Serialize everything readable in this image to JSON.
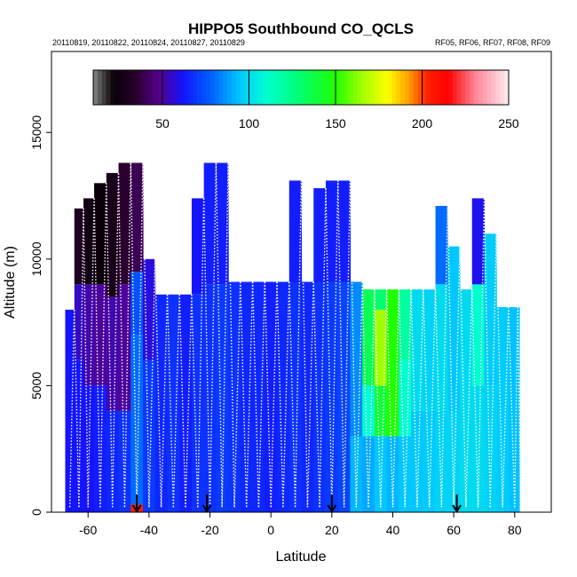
{
  "chart_data": {
    "type": "heatmap",
    "title": "HIPPO5 Southbound CO_QCLS",
    "subtitle_left": "20110819, 20110822, 20110824, 20110827, 20110829",
    "subtitle_right": "RF05, RF06, RF07, RF08, RF09",
    "xlabel": "Latitude",
    "ylabel": "Altitude (m)",
    "xlim": [
      -72,
      92
    ],
    "ylim": [
      0,
      18200
    ],
    "x_ticks": [
      -60,
      -40,
      -20,
      0,
      20,
      40,
      60,
      80
    ],
    "x_tick_labels": [
      "-60",
      "-40",
      "-20",
      "0",
      "20",
      "40",
      "60",
      "80"
    ],
    "y_ticks": [
      0,
      5000,
      10000,
      15000
    ],
    "y_tick_labels": [
      "0",
      "5000",
      "10000",
      "15000"
    ],
    "colorbar": {
      "range": [
        10,
        250
      ],
      "ticks": [
        50,
        100,
        150,
        200,
        250
      ],
      "tick_labels": [
        "50",
        "100",
        "150",
        "200",
        "250"
      ],
      "stops": [
        {
          "v": 10,
          "c": "#888888"
        },
        {
          "v": 17,
          "c": "#333333"
        },
        {
          "v": 22,
          "c": "#0a0008"
        },
        {
          "v": 35,
          "c": "#2a0030"
        },
        {
          "v": 48,
          "c": "#55008a"
        },
        {
          "v": 62,
          "c": "#1414ff"
        },
        {
          "v": 78,
          "c": "#0060ff"
        },
        {
          "v": 95,
          "c": "#00c8ff"
        },
        {
          "v": 110,
          "c": "#00ffd0"
        },
        {
          "v": 128,
          "c": "#00ff7a"
        },
        {
          "v": 150,
          "c": "#20ff00"
        },
        {
          "v": 165,
          "c": "#a0ff00"
        },
        {
          "v": 180,
          "c": "#ffff00"
        },
        {
          "v": 192,
          "c": "#ffa000"
        },
        {
          "v": 203,
          "c": "#ff2000"
        },
        {
          "v": 215,
          "c": "#ff0000"
        },
        {
          "v": 230,
          "c": "#ff8090"
        },
        {
          "v": 250,
          "c": "#ffeef2"
        }
      ]
    },
    "flight_markers_latitude": [
      -44,
      -21,
      20,
      61
    ],
    "data_columns": [
      {
        "lat": -66,
        "top": 8000,
        "bands": [
          [
            0,
            8000,
            62
          ]
        ]
      },
      {
        "lat": -63,
        "top": 12000,
        "bands": [
          [
            0,
            6000,
            62
          ],
          [
            6000,
            9000,
            55
          ],
          [
            9000,
            12000,
            30
          ]
        ]
      },
      {
        "lat": -60,
        "top": 12400,
        "bands": [
          [
            0,
            5000,
            62
          ],
          [
            5000,
            9000,
            52
          ],
          [
            9000,
            12400,
            25
          ]
        ]
      },
      {
        "lat": -56,
        "top": 13000,
        "bands": [
          [
            0,
            5000,
            64
          ],
          [
            5000,
            9000,
            50
          ],
          [
            9000,
            13000,
            22
          ]
        ]
      },
      {
        "lat": -52,
        "top": 13400,
        "bands": [
          [
            0,
            4000,
            66
          ],
          [
            4000,
            8500,
            52
          ],
          [
            8500,
            13400,
            28
          ]
        ]
      },
      {
        "lat": -48,
        "top": 13800,
        "bands": [
          [
            0,
            4000,
            68
          ],
          [
            4000,
            9000,
            50
          ],
          [
            9000,
            13800,
            35
          ]
        ]
      },
      {
        "lat": -44,
        "top": 13800,
        "bands": [
          [
            0,
            300,
            205
          ],
          [
            300,
            7000,
            80
          ],
          [
            7000,
            9500,
            75
          ],
          [
            9500,
            13800,
            40
          ]
        ]
      },
      {
        "lat": -40,
        "top": 10000,
        "bands": [
          [
            0,
            6000,
            70
          ],
          [
            6000,
            10000,
            58
          ]
        ]
      },
      {
        "lat": -36,
        "top": 8600,
        "bands": [
          [
            0,
            8600,
            66
          ]
        ]
      },
      {
        "lat": -32,
        "top": 8600,
        "bands": [
          [
            0,
            8600,
            68
          ]
        ]
      },
      {
        "lat": -28,
        "top": 8600,
        "bands": [
          [
            0,
            8600,
            64
          ]
        ]
      },
      {
        "lat": -24,
        "top": 12400,
        "bands": [
          [
            0,
            8600,
            68
          ],
          [
            8600,
            12400,
            62
          ]
        ]
      },
      {
        "lat": -20,
        "top": 13800,
        "bands": [
          [
            0,
            9000,
            68
          ],
          [
            9000,
            13800,
            64
          ]
        ]
      },
      {
        "lat": -16,
        "top": 13800,
        "bands": [
          [
            0,
            9000,
            70
          ],
          [
            9000,
            13800,
            64
          ]
        ]
      },
      {
        "lat": -12,
        "top": 9100,
        "bands": [
          [
            0,
            9100,
            68
          ]
        ]
      },
      {
        "lat": -8,
        "top": 9100,
        "bands": [
          [
            0,
            9100,
            66
          ]
        ]
      },
      {
        "lat": -4,
        "top": 9100,
        "bands": [
          [
            0,
            9100,
            66
          ]
        ]
      },
      {
        "lat": 0,
        "top": 9100,
        "bands": [
          [
            0,
            9100,
            64
          ]
        ]
      },
      {
        "lat": 4,
        "top": 9100,
        "bands": [
          [
            0,
            9100,
            66
          ]
        ]
      },
      {
        "lat": 8,
        "top": 13100,
        "bands": [
          [
            0,
            9100,
            68
          ],
          [
            9100,
            13100,
            64
          ]
        ]
      },
      {
        "lat": 12,
        "top": 9100,
        "bands": [
          [
            0,
            9100,
            66
          ]
        ]
      },
      {
        "lat": 16,
        "top": 12800,
        "bands": [
          [
            0,
            9100,
            68
          ],
          [
            9100,
            12800,
            64
          ]
        ]
      },
      {
        "lat": 20,
        "top": 13100,
        "bands": [
          [
            0,
            9100,
            70
          ],
          [
            9100,
            13100,
            64
          ]
        ]
      },
      {
        "lat": 24,
        "top": 13100,
        "bands": [
          [
            0,
            9100,
            72
          ],
          [
            9100,
            13100,
            64
          ]
        ]
      },
      {
        "lat": 28,
        "top": 9100,
        "bands": [
          [
            0,
            3000,
            92
          ],
          [
            3000,
            9100,
            85
          ]
        ]
      },
      {
        "lat": 32,
        "top": 8800,
        "bands": [
          [
            0,
            3000,
            90
          ],
          [
            3000,
            5000,
            110
          ],
          [
            5000,
            8800,
            135
          ]
        ]
      },
      {
        "lat": 36,
        "top": 8800,
        "bands": [
          [
            0,
            3000,
            95
          ],
          [
            3000,
            5000,
            140
          ],
          [
            5000,
            8000,
            165
          ],
          [
            8000,
            8800,
            130
          ]
        ]
      },
      {
        "lat": 40,
        "top": 8800,
        "bands": [
          [
            0,
            3000,
            92
          ],
          [
            3000,
            6000,
            150
          ],
          [
            6000,
            8800,
            150
          ]
        ]
      },
      {
        "lat": 44,
        "top": 8800,
        "bands": [
          [
            0,
            3000,
            95
          ],
          [
            3000,
            6000,
            110
          ],
          [
            6000,
            8800,
            120
          ]
        ]
      },
      {
        "lat": 48,
        "top": 8800,
        "bands": [
          [
            0,
            4000,
            95
          ],
          [
            4000,
            8800,
            100
          ]
        ]
      },
      {
        "lat": 52,
        "top": 8800,
        "bands": [
          [
            0,
            4000,
            96
          ],
          [
            4000,
            8800,
            98
          ]
        ]
      },
      {
        "lat": 56,
        "top": 12100,
        "bands": [
          [
            0,
            4000,
            98
          ],
          [
            4000,
            9000,
            100
          ],
          [
            9000,
            12100,
            80
          ]
        ]
      },
      {
        "lat": 60,
        "top": 10500,
        "bands": [
          [
            0,
            4000,
            98
          ],
          [
            4000,
            10500,
            95
          ]
        ]
      },
      {
        "lat": 64,
        "top": 8800,
        "bands": [
          [
            0,
            8800,
            100
          ]
        ]
      },
      {
        "lat": 68,
        "top": 12400,
        "bands": [
          [
            0,
            5000,
            100
          ],
          [
            5000,
            9000,
            110
          ],
          [
            9000,
            12400,
            60
          ]
        ]
      },
      {
        "lat": 72,
        "top": 11000,
        "bands": [
          [
            0,
            5000,
            98
          ],
          [
            5000,
            11000,
            96
          ]
        ]
      },
      {
        "lat": 76,
        "top": 8100,
        "bands": [
          [
            0,
            8100,
            96
          ]
        ]
      },
      {
        "lat": 80,
        "top": 8100,
        "bands": [
          [
            0,
            8100,
            94
          ]
        ]
      }
    ]
  }
}
